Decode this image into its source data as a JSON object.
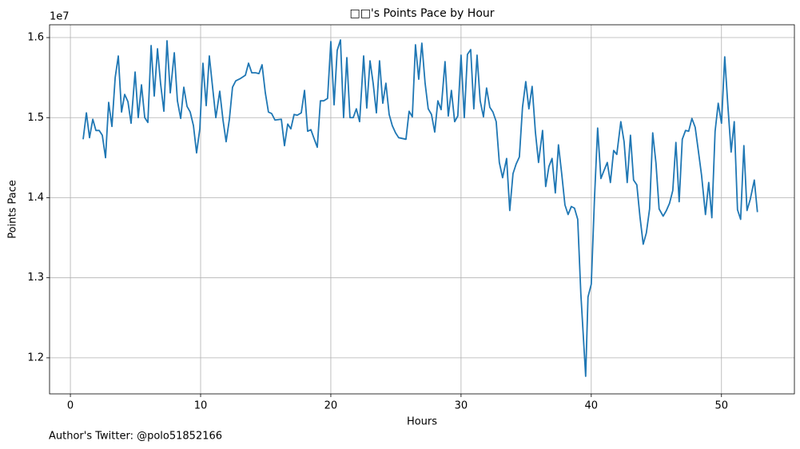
{
  "chart_data": {
    "type": "line",
    "title": "□□'s Points Pace by Hour",
    "x_label": "Hours",
    "y_label": "Points Pace",
    "y_offset_text": "1e7",
    "footnote": "Author's Twitter: @polo51852166",
    "color": "#1f77b4",
    "grid": true,
    "xlim": [
      -1.6,
      55.6
    ],
    "ylim": [
      11550000,
      16160000
    ],
    "xticks": [
      0,
      10,
      20,
      30,
      40,
      50
    ],
    "yticks": [
      {
        "value": 12000000,
        "label": "1.2"
      },
      {
        "value": 13000000,
        "label": "1.3"
      },
      {
        "value": 14000000,
        "label": "1.4"
      },
      {
        "value": 15000000,
        "label": "1.5"
      },
      {
        "value": 16000000,
        "label": "1.6"
      }
    ],
    "x": [
      0.98,
      1.23,
      1.47,
      1.72,
      1.96,
      2.21,
      2.45,
      2.7,
      2.94,
      3.19,
      3.44,
      3.68,
      3.93,
      4.17,
      4.42,
      4.66,
      4.97,
      5.21,
      5.46,
      5.71,
      5.95,
      6.2,
      6.44,
      6.69,
      6.93,
      7.18,
      7.42,
      7.67,
      7.98,
      8.22,
      8.47,
      8.71,
      8.96,
      9.2,
      9.45,
      9.69,
      9.94,
      10.18,
      10.43,
      10.67,
      10.92,
      11.17,
      11.47,
      11.72,
      11.96,
      12.21,
      12.45,
      12.7,
      13.07,
      13.44,
      13.68,
      13.93,
      14.23,
      14.48,
      14.72,
      14.97,
      15.21,
      15.46,
      15.71,
      16.2,
      16.44,
      16.69,
      16.93,
      17.18,
      17.42,
      17.73,
      17.98,
      18.22,
      18.47,
      18.71,
      18.96,
      19.2,
      19.45,
      19.75,
      20.0,
      20.25,
      20.49,
      20.74,
      20.98,
      21.23,
      21.47,
      21.72,
      21.96,
      22.21,
      22.52,
      22.76,
      23.01,
      23.25,
      23.5,
      23.74,
      23.99,
      24.23,
      24.48,
      24.72,
      24.97,
      25.21,
      25.77,
      26.01,
      26.26,
      26.5,
      26.75,
      26.99,
      27.24,
      27.48,
      27.73,
      27.98,
      28.22,
      28.47,
      28.77,
      29.02,
      29.26,
      29.51,
      29.75,
      30.0,
      30.25,
      30.49,
      30.74,
      30.98,
      31.23,
      31.47,
      31.72,
      31.96,
      32.21,
      32.45,
      32.7,
      32.94,
      33.19,
      33.5,
      33.74,
      33.99,
      34.23,
      34.48,
      34.72,
      34.97,
      35.21,
      35.46,
      35.71,
      35.95,
      36.26,
      36.5,
      36.75,
      36.99,
      37.24,
      37.48,
      37.73,
      37.98,
      38.22,
      38.47,
      38.71,
      38.96,
      39.2,
      39.57,
      39.75,
      40.0,
      40.25,
      40.49,
      40.74,
      40.98,
      41.23,
      41.47,
      41.72,
      41.96,
      42.27,
      42.52,
      42.76,
      43.01,
      43.25,
      43.5,
      43.74,
      43.99,
      44.23,
      44.48,
      44.72,
      44.97,
      45.21,
      45.52,
      45.77,
      46.01,
      46.26,
      46.5,
      46.75,
      46.99,
      47.24,
      47.48,
      47.73,
      47.98,
      48.22,
      48.47,
      48.77,
      49.02,
      49.26,
      49.51,
      49.75,
      50.0,
      50.25,
      50.49,
      50.74,
      50.98,
      51.23,
      51.47,
      51.72,
      51.96,
      52.21,
      52.52,
      52.76
    ],
    "values": [
      14730000,
      15060000,
      14750000,
      14980000,
      14840000,
      14840000,
      14780000,
      14500000,
      15190000,
      14890000,
      15500000,
      15770000,
      15070000,
      15290000,
      15200000,
      14930000,
      15570000,
      15000000,
      15410000,
      15000000,
      14940000,
      15900000,
      15270000,
      15860000,
      15420000,
      15080000,
      15960000,
      15310000,
      15810000,
      15210000,
      14990000,
      15380000,
      15140000,
      15070000,
      14900000,
      14560000,
      14860000,
      15680000,
      15150000,
      15770000,
      15380000,
      15000000,
      15330000,
      14970000,
      14700000,
      14980000,
      15380000,
      15460000,
      15490000,
      15530000,
      15680000,
      15560000,
      15560000,
      15550000,
      15660000,
      15310000,
      15070000,
      15050000,
      14970000,
      14980000,
      14650000,
      14920000,
      14860000,
      15040000,
      15030000,
      15060000,
      15340000,
      14830000,
      14850000,
      14740000,
      14630000,
      15210000,
      15210000,
      15240000,
      15950000,
      15160000,
      15840000,
      15970000,
      15000000,
      15750000,
      15000000,
      15000000,
      15110000,
      14950000,
      15770000,
      15120000,
      15710000,
      15430000,
      15060000,
      15710000,
      15180000,
      15430000,
      15040000,
      14900000,
      14810000,
      14750000,
      14730000,
      15080000,
      15010000,
      15910000,
      15480000,
      15930000,
      15430000,
      15110000,
      15040000,
      14820000,
      15210000,
      15100000,
      15700000,
      15020000,
      15340000,
      14950000,
      15020000,
      15780000,
      15000000,
      15790000,
      15850000,
      15110000,
      15780000,
      15210000,
      15010000,
      15370000,
      15130000,
      15070000,
      14950000,
      14440000,
      14250000,
      14490000,
      13840000,
      14300000,
      14420000,
      14510000,
      15130000,
      15450000,
      15110000,
      15390000,
      14820000,
      14440000,
      14840000,
      14140000,
      14390000,
      14490000,
      14060000,
      14660000,
      14300000,
      13910000,
      13790000,
      13890000,
      13870000,
      13730000,
      12800000,
      11770000,
      12760000,
      12920000,
      14000000,
      14870000,
      14240000,
      14340000,
      14440000,
      14190000,
      14590000,
      14540000,
      14950000,
      14700000,
      14190000,
      14780000,
      14220000,
      14160000,
      13760000,
      13420000,
      13560000,
      13860000,
      14810000,
      14430000,
      13860000,
      13770000,
      13840000,
      13930000,
      14090000,
      14690000,
      13950000,
      14730000,
      14840000,
      14830000,
      14990000,
      14880000,
      14590000,
      14280000,
      13790000,
      14190000,
      13750000,
      14830000,
      15180000,
      14930000,
      15760000,
      15150000,
      14570000,
      14950000,
      13850000,
      13730000,
      14650000,
      13840000,
      13980000,
      14220000,
      13820000
    ]
  }
}
